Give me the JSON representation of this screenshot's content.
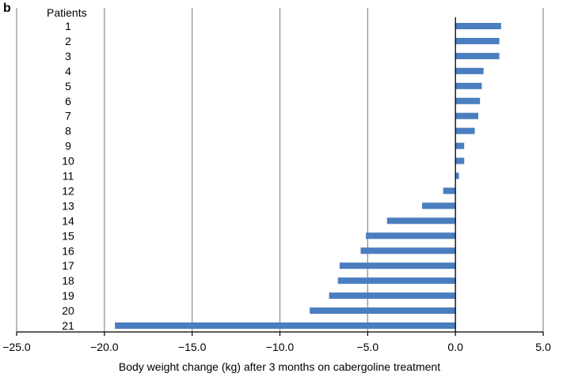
{
  "panel_label": "b",
  "chart_data": {
    "type": "bar",
    "orientation": "horizontal",
    "categories_title": "Patients",
    "categories": [
      "1",
      "2",
      "3",
      "4",
      "5",
      "6",
      "7",
      "8",
      "9",
      "10",
      "11",
      "12",
      "13",
      "14",
      "15",
      "16",
      "17",
      "18",
      "19",
      "20",
      "21"
    ],
    "values": [
      2.6,
      2.5,
      2.5,
      1.6,
      1.5,
      1.4,
      1.3,
      1.1,
      0.5,
      0.5,
      0.2,
      -0.7,
      -1.9,
      -3.9,
      -5.1,
      -5.4,
      -6.6,
      -6.7,
      -7.2,
      -8.3,
      -19.4
    ],
    "xlabel": "Body weight change (kg) after 3 months on cabergoline treatment",
    "xlim": [
      -25.0,
      5.0
    ],
    "xticks": [
      -25.0,
      -20.0,
      -15.0,
      -10.0,
      -5.0,
      0.0,
      5.0
    ],
    "xtick_labels": [
      "−25.0",
      "−20.0",
      "−15.0",
      "−10.0",
      "−5.0",
      "0.0",
      "5.0"
    ],
    "grid": "vertical",
    "colors": {
      "bar": "#4a7ebf",
      "grid": "#8c8c8c",
      "axis": "#000000"
    }
  }
}
